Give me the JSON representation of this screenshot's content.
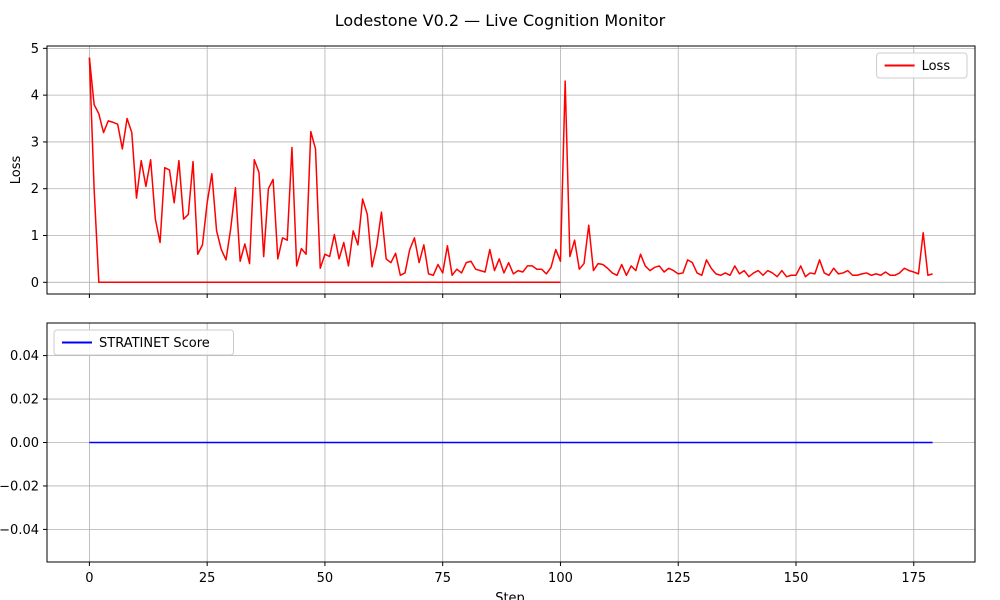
{
  "chart_data": {
    "title": "Lodestone V0.2 — Live Cognition Monitor",
    "xlabel": "Step",
    "xticks": [
      0,
      25,
      50,
      75,
      100,
      125,
      150,
      175
    ],
    "xlim": [
      -9,
      188
    ],
    "grid": true,
    "panels": [
      {
        "type": "line",
        "ylabel": "Loss",
        "ylim": [
          -0.25,
          5.05
        ],
        "yticks": [
          0,
          1,
          2,
          3,
          4,
          5
        ],
        "ytick_labels": [
          "0",
          "1",
          "2",
          "3",
          "4",
          "5"
        ],
        "legend_position": "top-right",
        "series": [
          {
            "name": "Loss",
            "color": "#ff0000",
            "x": [
              0,
              1,
              2,
              3,
              4,
              5,
              6,
              7,
              8,
              9,
              10,
              11,
              12,
              13,
              14,
              15,
              16,
              17,
              18,
              19,
              20,
              21,
              22,
              23,
              24,
              25,
              26,
              27,
              28,
              29,
              30,
              31,
              32,
              33,
              34,
              35,
              36,
              37,
              38,
              39,
              40,
              41,
              42,
              43,
              44,
              45,
              46,
              47,
              48,
              49,
              50,
              51,
              52,
              53,
              54,
              55,
              56,
              57,
              58,
              59,
              60,
              61,
              62,
              63,
              64,
              65,
              66,
              67,
              68,
              69,
              70,
              71,
              72,
              73,
              74,
              75,
              76,
              77,
              78,
              79,
              80,
              81,
              82,
              83,
              84,
              85,
              86,
              87,
              88,
              89,
              90,
              91,
              92,
              93,
              94,
              95,
              96,
              97,
              98,
              99,
              100,
              101,
              102,
              103,
              104,
              105,
              106,
              107,
              108,
              109,
              110,
              111,
              112,
              113,
              114,
              115,
              116,
              117,
              118,
              119,
              120,
              121,
              122,
              123,
              124,
              125,
              126,
              127,
              128,
              129,
              130,
              131,
              132,
              133,
              134,
              135,
              136,
              137,
              138,
              139,
              140,
              141,
              142,
              143,
              144,
              145,
              146,
              147,
              148,
              149,
              150,
              151,
              152,
              153,
              154,
              155,
              156,
              157,
              158,
              159,
              160,
              161,
              162,
              163,
              164,
              165,
              166,
              167,
              168,
              169,
              170,
              171,
              172,
              173,
              174,
              175,
              176,
              177,
              178,
              179
            ],
            "y": [
              4.8,
              3.8,
              3.6,
              3.2,
              3.45,
              3.42,
              3.38,
              2.85,
              3.5,
              3.2,
              1.8,
              2.6,
              2.05,
              2.62,
              1.35,
              0.85,
              2.45,
              2.4,
              1.7,
              2.6,
              1.35,
              1.45,
              2.58,
              0.6,
              0.8,
              1.7,
              2.32,
              1.1,
              0.7,
              0.48,
              1.15,
              2.02,
              0.45,
              0.82,
              0.4,
              2.62,
              2.35,
              0.55,
              2.0,
              2.2,
              0.5,
              0.95,
              0.9,
              2.88,
              0.35,
              0.72,
              0.6,
              3.22,
              2.85,
              0.3,
              0.6,
              0.55,
              1.02,
              0.5,
              0.85,
              0.35,
              1.1,
              0.8,
              1.78,
              1.45,
              0.33,
              0.78,
              1.5,
              0.5,
              0.42,
              0.62,
              0.15,
              0.2,
              0.7,
              0.95,
              0.42,
              0.8,
              0.18,
              0.15,
              0.38,
              0.2,
              0.78,
              0.15,
              0.28,
              0.2,
              0.42,
              0.45,
              0.28,
              0.25,
              0.22,
              0.7,
              0.25,
              0.5,
              0.2,
              0.42,
              0.18,
              0.25,
              0.22,
              0.35,
              0.35,
              0.28,
              0.28,
              0.18,
              0.32,
              0.7,
              0.45,
              4.3,
              0.55,
              0.9,
              0.28,
              0.4,
              1.22,
              0.25,
              0.4,
              0.38,
              0.3,
              0.2,
              0.15,
              0.38,
              0.15,
              0.35,
              0.25,
              0.6,
              0.35,
              0.25,
              0.32,
              0.35,
              0.22,
              0.3,
              0.25,
              0.18,
              0.2,
              0.48,
              0.42,
              0.2,
              0.15,
              0.48,
              0.3,
              0.18,
              0.15,
              0.2,
              0.15,
              0.35,
              0.18,
              0.25,
              0.12,
              0.2,
              0.25,
              0.15,
              0.25,
              0.2,
              0.12,
              0.25,
              0.12,
              0.15,
              0.15,
              0.35,
              0.12,
              0.2,
              0.18,
              0.48,
              0.2,
              0.15,
              0.3,
              0.18,
              0.2,
              0.25,
              0.15,
              0.15,
              0.18,
              0.2,
              0.15,
              0.18,
              0.15,
              0.22,
              0.15,
              0.15,
              0.2,
              0.3,
              0.25,
              0.22,
              0.18,
              1.06,
              0.15,
              0.18
            ]
          },
          {
            "name": "",
            "color": "#ff0000",
            "x": [
              0,
              1,
              2,
              3,
              100
            ],
            "y": [
              4.8,
              2.0,
              0,
              0,
              0
            ]
          }
        ]
      },
      {
        "type": "line",
        "ylabel": "",
        "ylim": [
          -0.055,
          0.055
        ],
        "yticks": [
          -0.04,
          -0.02,
          0.0,
          0.02,
          0.04
        ],
        "ytick_labels": [
          "−0.04",
          "−0.02",
          "0.00",
          "0.02",
          "0.04"
        ],
        "legend_position": "top-left",
        "series": [
          {
            "name": "STRATINET Score",
            "color": "#0000ff",
            "x": [
              0,
              179
            ],
            "y": [
              0,
              0
            ]
          }
        ]
      }
    ]
  }
}
